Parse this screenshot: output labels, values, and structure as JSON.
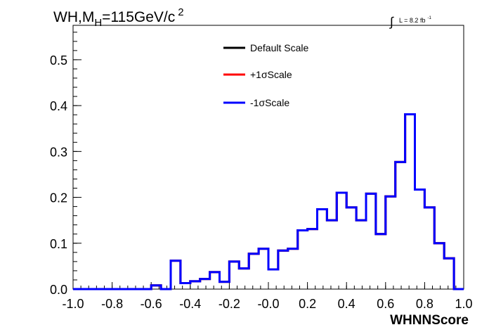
{
  "chart_data": {
    "type": "step-histogram",
    "title": {
      "main": "WH,M",
      "subscript": "H",
      "rest": "=115GeV/c",
      "superscript": "2"
    },
    "luminosity": {
      "symbol": "∫",
      "text": "L = 8.2 fb",
      "exp": "-1"
    },
    "xlabel": "WHNNScore",
    "ylabel": "",
    "xlim": [
      -1.0,
      1.0
    ],
    "ylim": [
      0,
      0.575
    ],
    "xticks": [
      -1.0,
      -0.8,
      -0.6,
      -0.4,
      -0.2,
      0.0,
      0.2,
      0.4,
      0.6,
      0.8,
      1.0
    ],
    "xtick_labels": [
      "-1.0",
      "-0.8",
      "-0.6",
      "-0.4",
      "-0.2",
      "-0.0",
      "0.2",
      "0.4",
      "0.6",
      "0.8",
      "1.0"
    ],
    "yticks": [
      0.0,
      0.1,
      0.2,
      0.3,
      0.4,
      0.5
    ],
    "ytick_labels": [
      "0.0",
      "0.1",
      "0.2",
      "0.3",
      "0.4",
      "0.5"
    ],
    "bin_edges_start": -1.0,
    "bin_width": 0.05,
    "legend_position": "top-center",
    "series": [
      {
        "name": "Default Scale",
        "color": "#000000",
        "values": [
          0,
          0,
          0,
          0,
          0,
          0,
          0,
          0,
          0.008,
          0.0,
          0.062,
          0.013,
          0.017,
          0.022,
          0.037,
          0.016,
          0.06,
          0.045,
          0.077,
          0.088,
          0.043,
          0.084,
          0.088,
          0.128,
          0.131,
          0.174,
          0.15,
          0.21,
          0.178,
          0.15,
          0.208,
          0.12,
          0.202,
          0.277,
          0.381,
          0.217,
          0.178,
          0.1,
          0.067,
          0.0
        ]
      },
      {
        "name": "+1σScale",
        "color": "#ff0000",
        "values": [
          0,
          0,
          0,
          0,
          0,
          0,
          0,
          0,
          0.008,
          0.0,
          0.062,
          0.013,
          0.017,
          0.022,
          0.037,
          0.016,
          0.06,
          0.045,
          0.077,
          0.088,
          0.043,
          0.084,
          0.088,
          0.128,
          0.131,
          0.174,
          0.15,
          0.21,
          0.178,
          0.15,
          0.208,
          0.12,
          0.202,
          0.277,
          0.381,
          0.217,
          0.178,
          0.1,
          0.067,
          0.0
        ]
      },
      {
        "name": "-1σScale",
        "color": "#0000ff",
        "values": [
          0,
          0,
          0,
          0,
          0,
          0,
          0,
          0,
          0.008,
          0.0,
          0.062,
          0.013,
          0.017,
          0.022,
          0.037,
          0.016,
          0.06,
          0.045,
          0.077,
          0.088,
          0.043,
          0.084,
          0.088,
          0.128,
          0.131,
          0.174,
          0.15,
          0.21,
          0.178,
          0.15,
          0.208,
          0.12,
          0.202,
          0.277,
          0.381,
          0.217,
          0.178,
          0.1,
          0.067,
          0.0
        ]
      }
    ]
  }
}
